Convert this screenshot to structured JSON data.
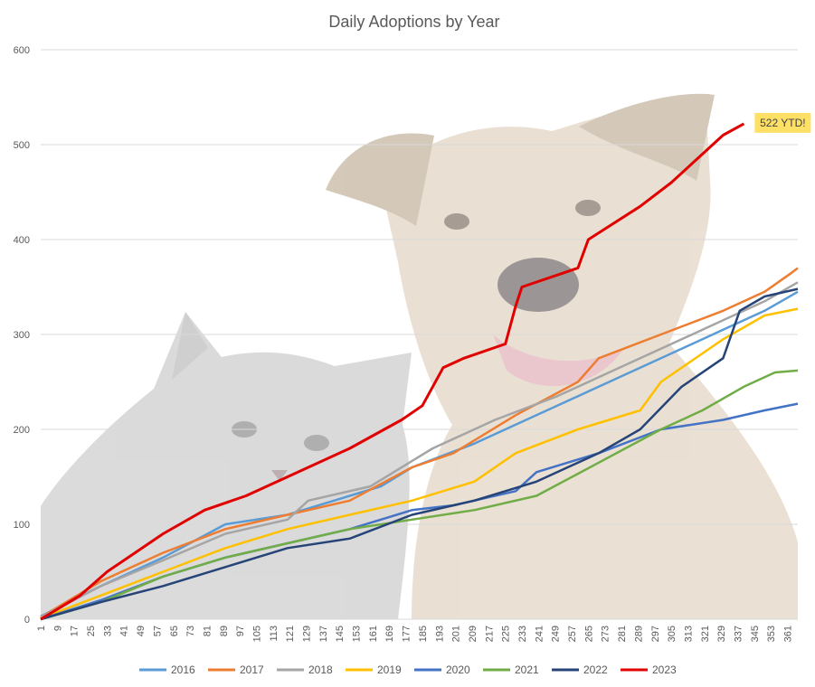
{
  "chart_data": {
    "type": "line",
    "title": "Daily Adoptions by Year",
    "xlabel": "",
    "ylabel": "",
    "xlim": [
      1,
      366
    ],
    "ylim": [
      0,
      600
    ],
    "y_ticks": [
      0,
      100,
      200,
      300,
      400,
      500,
      600
    ],
    "x_tick_labels": [
      "1",
      "9",
      "17",
      "25",
      "33",
      "41",
      "49",
      "57",
      "65",
      "73",
      "81",
      "89",
      "97",
      "105",
      "113",
      "121",
      "129",
      "137",
      "145",
      "153",
      "161",
      "169",
      "177",
      "185",
      "193",
      "201",
      "209",
      "217",
      "225",
      "233",
      "241",
      "249",
      "257",
      "265",
      "273",
      "281",
      "289",
      "297",
      "305",
      "313",
      "321",
      "329",
      "337",
      "345",
      "353",
      "361"
    ],
    "grid": "horizontal",
    "legend_position": "bottom",
    "background_image": "cat-and-dog-photo",
    "series": [
      {
        "name": "2016",
        "color": "#5B9BD5",
        "x": [
          1,
          30,
          60,
          90,
          120,
          150,
          165,
          180,
          210,
          240,
          270,
          300,
          330,
          350,
          366
        ],
        "y": [
          3,
          35,
          65,
          100,
          110,
          130,
          140,
          160,
          185,
          215,
          245,
          275,
          305,
          325,
          345
        ]
      },
      {
        "name": "2017",
        "color": "#ED7D31",
        "x": [
          1,
          30,
          60,
          90,
          120,
          150,
          180,
          200,
          230,
          260,
          270,
          300,
          330,
          350,
          363,
          366
        ],
        "y": [
          2,
          40,
          70,
          95,
          110,
          125,
          160,
          175,
          215,
          250,
          275,
          300,
          325,
          345,
          365,
          370
        ]
      },
      {
        "name": "2018",
        "color": "#A5A5A5",
        "x": [
          1,
          30,
          60,
          90,
          120,
          130,
          160,
          190,
          220,
          250,
          280,
          310,
          330,
          350,
          366
        ],
        "y": [
          2,
          35,
          62,
          90,
          105,
          125,
          140,
          180,
          210,
          235,
          265,
          295,
          315,
          335,
          355
        ]
      },
      {
        "name": "2019",
        "color": "#FFC000",
        "x": [
          1,
          30,
          60,
          90,
          120,
          150,
          180,
          210,
          230,
          260,
          290,
          300,
          330,
          350,
          366
        ],
        "y": [
          1,
          25,
          50,
          75,
          95,
          110,
          125,
          145,
          175,
          200,
          220,
          250,
          295,
          320,
          327
        ]
      },
      {
        "name": "2020",
        "color": "#4472C4",
        "x": [
          1,
          30,
          60,
          90,
          120,
          150,
          180,
          200,
          230,
          240,
          270,
          300,
          330,
          350,
          366
        ],
        "y": [
          0,
          20,
          45,
          65,
          80,
          95,
          115,
          120,
          135,
          155,
          175,
          200,
          210,
          220,
          227
        ]
      },
      {
        "name": "2021",
        "color": "#70AD47",
        "x": [
          1,
          30,
          60,
          90,
          120,
          150,
          180,
          210,
          240,
          270,
          300,
          320,
          340,
          355,
          366
        ],
        "y": [
          0,
          18,
          45,
          65,
          80,
          95,
          105,
          115,
          130,
          165,
          200,
          220,
          245,
          260,
          262
        ]
      },
      {
        "name": "2022",
        "color": "#264478",
        "x": [
          1,
          30,
          60,
          90,
          120,
          150,
          180,
          210,
          240,
          270,
          290,
          310,
          330,
          338,
          350,
          366
        ],
        "y": [
          0,
          18,
          35,
          55,
          75,
          85,
          110,
          125,
          145,
          175,
          200,
          245,
          275,
          325,
          340,
          348
        ]
      },
      {
        "name": "2023",
        "color": "#E00000",
        "x": [
          1,
          20,
          33,
          60,
          80,
          100,
          120,
          150,
          175,
          185,
          195,
          205,
          225,
          230,
          233,
          260,
          265,
          290,
          305,
          320,
          330,
          340
        ],
        "y": [
          0,
          25,
          50,
          90,
          115,
          130,
          150,
          180,
          210,
          225,
          265,
          275,
          290,
          330,
          350,
          370,
          400,
          435,
          460,
          490,
          510,
          522
        ]
      }
    ],
    "annotations": [
      {
        "text": "522 YTD!",
        "x": 340,
        "y": 522,
        "series": "2023"
      }
    ]
  }
}
